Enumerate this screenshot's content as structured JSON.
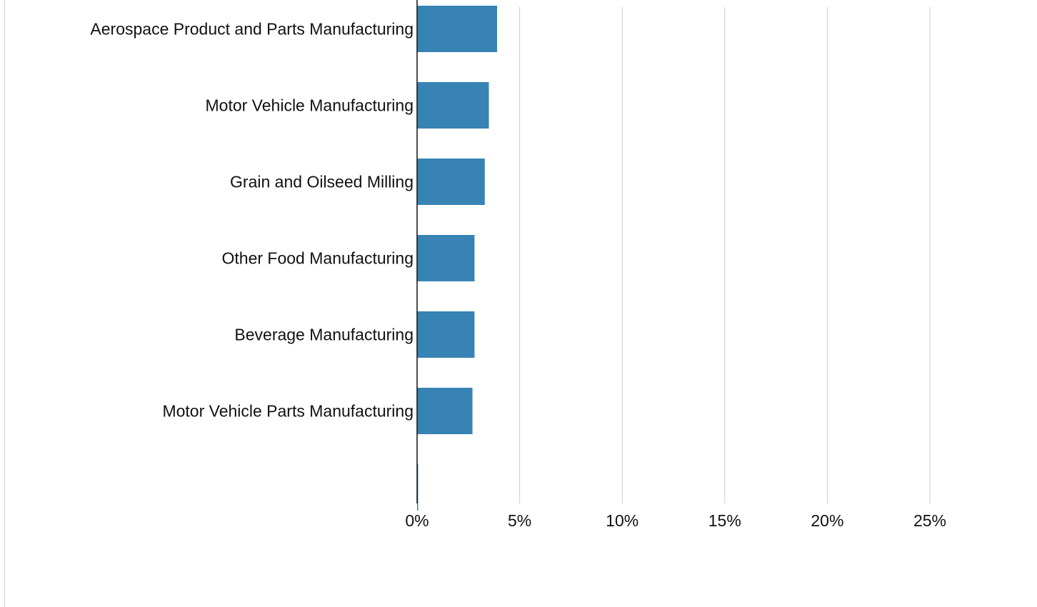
{
  "chart_data": {
    "type": "bar",
    "orientation": "horizontal",
    "categories": [
      "Aerospace Product and Parts Manufacturing",
      "Motor Vehicle Manufacturing",
      "Grain and Oilseed Milling",
      "Other Food Manufacturing",
      "Beverage Manufacturing",
      "Motor Vehicle Parts Manufacturing",
      ""
    ],
    "values": [
      3.9,
      3.5,
      3.3,
      2.8,
      2.8,
      2.7,
      0.05
    ],
    "xlim": [
      0,
      25
    ],
    "xticks": [
      "0%",
      "5%",
      "10%",
      "15%",
      "20%",
      "25%"
    ],
    "grid": true,
    "colors": {
      "bar": "#3783b4",
      "grid": "#cccccc",
      "axis": "#111111"
    }
  }
}
